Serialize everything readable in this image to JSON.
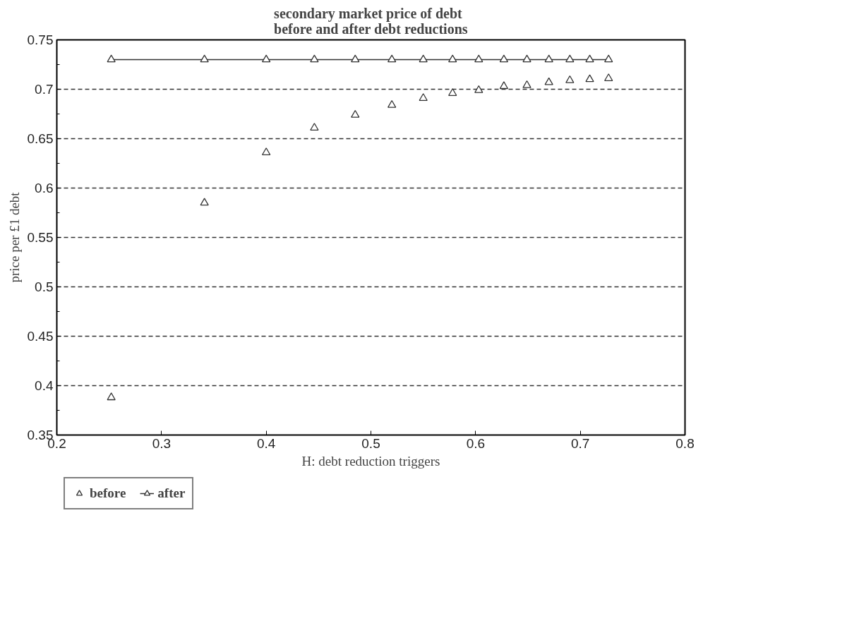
{
  "chart_data": {
    "type": "scatter",
    "title": "secondary market price of debt\nbefore and after debt reductions",
    "xlabel": "H: debt reduction triggers",
    "ylabel": "price per £1 debt",
    "x": [
      0.252,
      0.341,
      0.4,
      0.446,
      0.485,
      0.52,
      0.55,
      0.578,
      0.603,
      0.627,
      0.649,
      0.67,
      0.69,
      0.709,
      0.727
    ],
    "series": [
      {
        "name": "before",
        "marker": "triangle",
        "color": "#333333",
        "values": [
          0.388,
          0.585,
          0.636,
          0.661,
          0.674,
          0.684,
          0.691,
          0.696,
          0.699,
          0.703,
          0.704,
          0.707,
          0.709,
          0.71,
          0.711
        ]
      },
      {
        "name": "after",
        "type": "line",
        "marker": "triangle",
        "color": "#333333",
        "values": [
          0.73,
          0.73,
          0.73,
          0.73,
          0.73,
          0.73,
          0.73,
          0.73,
          0.73,
          0.73,
          0.73,
          0.73,
          0.73,
          0.73,
          0.73
        ]
      }
    ],
    "xlim": [
      0.2,
      0.8
    ],
    "ylim": [
      0.35,
      0.75
    ],
    "xticks": [
      {
        "value": 0.2,
        "label": "0.2"
      },
      {
        "value": 0.3,
        "label": "0.3"
      },
      {
        "value": 0.4,
        "label": "0.4"
      },
      {
        "value": 0.5,
        "label": "0.5"
      },
      {
        "value": 0.6,
        "label": "0.6"
      },
      {
        "value": 0.7,
        "label": "0.7"
      },
      {
        "value": 0.8,
        "label": "0.8"
      }
    ],
    "yticks": [
      {
        "value": 0.35,
        "label": "0.35"
      },
      {
        "value": 0.4,
        "label": "0.4"
      },
      {
        "value": 0.45,
        "label": "0.45"
      },
      {
        "value": 0.5,
        "label": "0.5"
      },
      {
        "value": 0.55,
        "label": "0.55"
      },
      {
        "value": 0.6,
        "label": "0.6"
      },
      {
        "value": 0.65,
        "label": "0.65"
      },
      {
        "value": 0.7,
        "label": "0.7"
      },
      {
        "value": 0.75,
        "label": "0.75"
      }
    ],
    "grid": "y",
    "legend": "bottom left"
  }
}
